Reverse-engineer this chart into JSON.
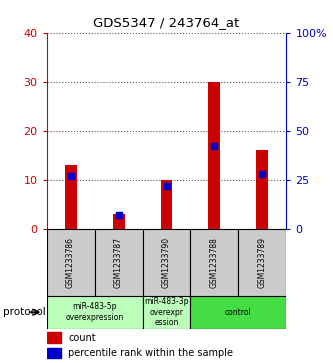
{
  "title": "GDS5347 / 243764_at",
  "samples": [
    "GSM1233786",
    "GSM1233787",
    "GSM1233790",
    "GSM1233788",
    "GSM1233789"
  ],
  "counts": [
    13,
    3,
    10,
    30,
    16
  ],
  "percentiles": [
    27,
    7,
    22,
    42,
    28
  ],
  "ylim_left": [
    0,
    40
  ],
  "ylim_right": [
    0,
    100
  ],
  "yticks_left": [
    0,
    10,
    20,
    30,
    40
  ],
  "yticks_right": [
    0,
    25,
    50,
    75,
    100
  ],
  "yticklabels_right": [
    "0",
    "25",
    "50",
    "75",
    "100%"
  ],
  "groups": [
    {
      "label": "miR-483-5p\noverexpression",
      "samples": [
        0,
        1
      ],
      "color": "#bbffbb"
    },
    {
      "label": "miR-483-3p\noverexpr\nession",
      "samples": [
        2
      ],
      "color": "#bbffbb"
    },
    {
      "label": "control",
      "samples": [
        3,
        4
      ],
      "color": "#44dd44"
    }
  ],
  "bar_width": 0.25,
  "bar_color_red": "#cc0000",
  "bar_color_blue": "#0000cc",
  "grid_color": "#555555",
  "sample_box_color": "#cccccc",
  "left_axis_color": "#cc0000",
  "right_axis_color": "#0000cc"
}
